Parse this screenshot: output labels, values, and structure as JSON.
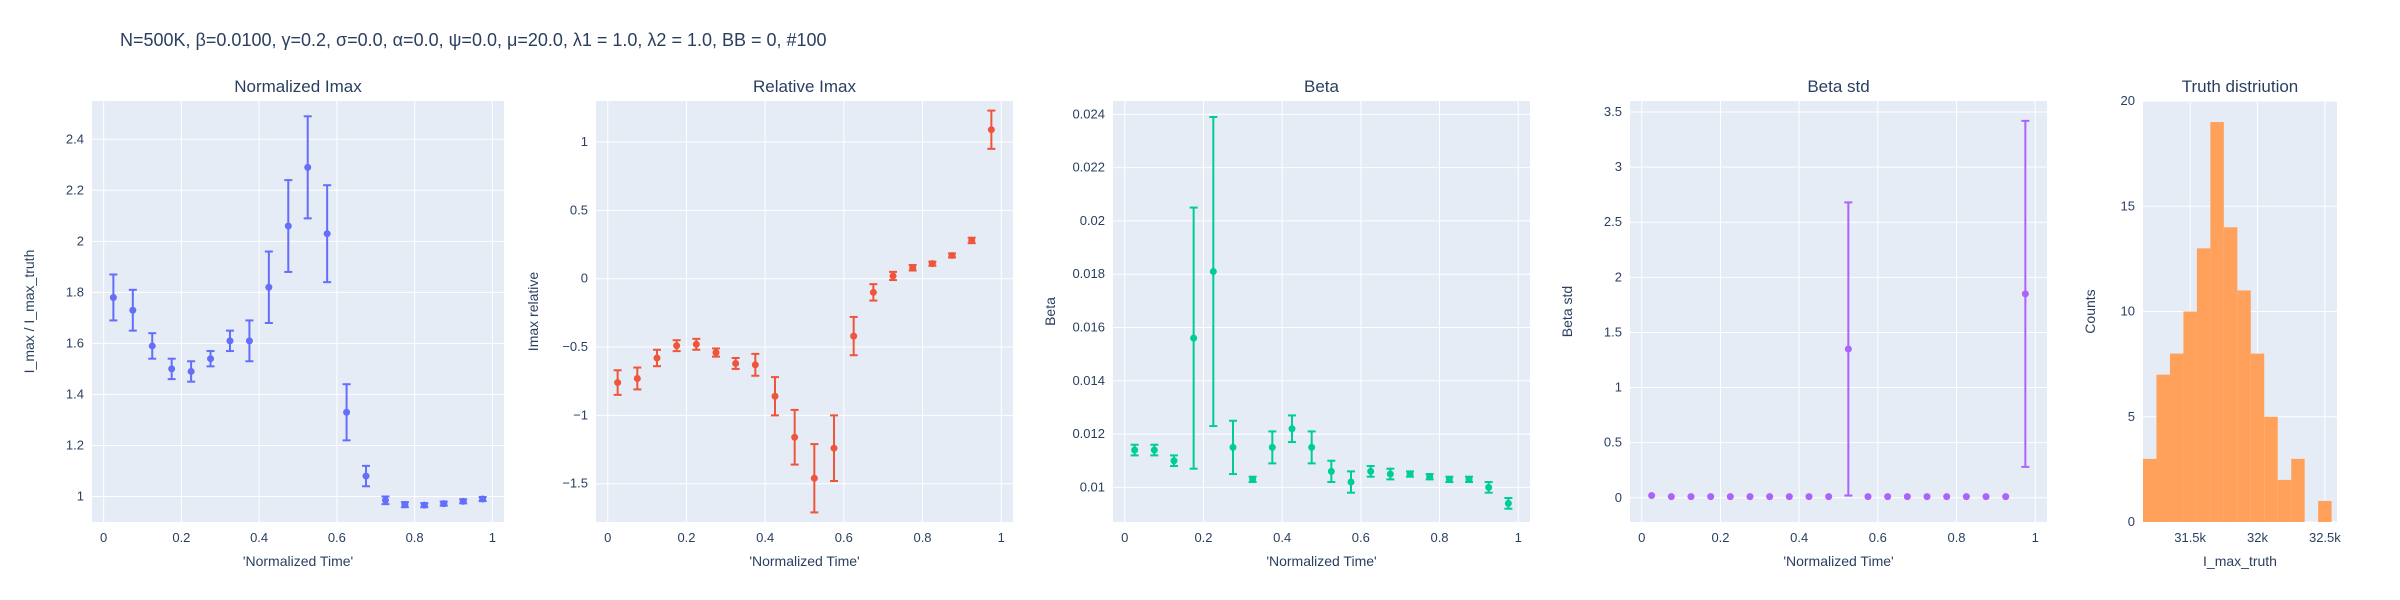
{
  "figure": {
    "suptitle": "N=500K, β=0.0100, γ=0.2, σ=0.0,  α=0.0, ψ=0.0, μ=20.0, λ1 = 1.0, λ2 = 1.0, BB = 0, #100",
    "colors": {
      "plot_bg": "#e5ecf6",
      "grid": "#ffffff",
      "text": "#2a3f5f"
    }
  },
  "chart_data": [
    {
      "type": "scatter",
      "title": "Normalized Imax",
      "xlabel": "'Normalized Time'",
      "ylabel": "I_max / I_max_truth",
      "xlim": [
        -0.03,
        1.03
      ],
      "ylim": [
        0.9,
        2.55
      ],
      "xticks": [
        0,
        0.2,
        0.4,
        0.6,
        0.8,
        1
      ],
      "xtick_labels": [
        "0",
        "0.2",
        "0.4",
        "0.6",
        "0.8",
        "1"
      ],
      "yticks": [
        1,
        1.2,
        1.4,
        1.6,
        1.8,
        2,
        2.2,
        2.4
      ],
      "ytick_labels": [
        "1",
        "1.2",
        "1.4",
        "1.6",
        "1.8",
        "2",
        "2.2",
        "2.4"
      ],
      "color": "#636efa",
      "x": [
        0.025,
        0.075,
        0.125,
        0.175,
        0.225,
        0.275,
        0.325,
        0.375,
        0.425,
        0.475,
        0.525,
        0.575,
        0.625,
        0.675,
        0.725,
        0.775,
        0.825,
        0.875,
        0.925,
        0.975
      ],
      "y": [
        1.78,
        1.73,
        1.59,
        1.5,
        1.49,
        1.54,
        1.61,
        1.61,
        1.82,
        2.06,
        2.29,
        2.03,
        1.33,
        1.08,
        0.985,
        0.968,
        0.966,
        0.972,
        0.981,
        0.99
      ],
      "error": [
        0.09,
        0.08,
        0.05,
        0.04,
        0.04,
        0.03,
        0.04,
        0.08,
        0.14,
        0.18,
        0.2,
        0.19,
        0.11,
        0.04,
        0.015,
        0.01,
        0.008,
        0.008,
        0.008,
        0.008
      ]
    },
    {
      "type": "scatter",
      "title": "Relative Imax",
      "xlabel": "'Normalized Time'",
      "ylabel": "Imax relative",
      "xlim": [
        -0.03,
        1.03
      ],
      "ylim": [
        -1.78,
        1.3
      ],
      "xticks": [
        0,
        0.2,
        0.4,
        0.6,
        0.8,
        1
      ],
      "xtick_labels": [
        "0",
        "0.2",
        "0.4",
        "0.6",
        "0.8",
        "1"
      ],
      "yticks": [
        -1.5,
        -1,
        -0.5,
        0,
        0.5,
        1
      ],
      "ytick_labels": [
        "−1.5",
        "−1",
        "−0.5",
        "0",
        "0.5",
        "1"
      ],
      "color": "#ef553b",
      "x": [
        0.025,
        0.075,
        0.125,
        0.175,
        0.225,
        0.275,
        0.325,
        0.375,
        0.425,
        0.475,
        0.525,
        0.575,
        0.625,
        0.675,
        0.725,
        0.775,
        0.825,
        0.875,
        0.925,
        0.975
      ],
      "y": [
        -0.76,
        -0.73,
        -0.58,
        -0.49,
        -0.48,
        -0.54,
        -0.62,
        -0.63,
        -0.86,
        -1.16,
        -1.46,
        -1.24,
        -0.42,
        -0.1,
        0.02,
        0.08,
        0.11,
        0.17,
        0.28,
        1.09
      ],
      "error": [
        0.09,
        0.08,
        0.06,
        0.04,
        0.04,
        0.03,
        0.04,
        0.08,
        0.14,
        0.2,
        0.25,
        0.24,
        0.14,
        0.06,
        0.03,
        0.02,
        0.015,
        0.015,
        0.02,
        0.14
      ]
    },
    {
      "type": "scatter",
      "title": "Beta",
      "xlabel": "'Normalized Time'",
      "ylabel": "Beta",
      "xlim": [
        -0.03,
        1.03
      ],
      "ylim": [
        0.0087,
        0.0245
      ],
      "xticks": [
        0,
        0.2,
        0.4,
        0.6,
        0.8,
        1
      ],
      "xtick_labels": [
        "0",
        "0.2",
        "0.4",
        "0.6",
        "0.8",
        "1"
      ],
      "yticks": [
        0.01,
        0.012,
        0.014,
        0.016,
        0.018,
        0.02,
        0.022,
        0.024
      ],
      "ytick_labels": [
        "0.01",
        "0.012",
        "0.014",
        "0.016",
        "0.018",
        "0.02",
        "0.022",
        "0.024"
      ],
      "color": "#00cc96",
      "x": [
        0.025,
        0.075,
        0.125,
        0.175,
        0.225,
        0.275,
        0.325,
        0.375,
        0.425,
        0.475,
        0.525,
        0.575,
        0.625,
        0.675,
        0.725,
        0.775,
        0.825,
        0.875,
        0.925,
        0.975
      ],
      "y": [
        0.0114,
        0.0114,
        0.011,
        0.0156,
        0.0181,
        0.0115,
        0.0103,
        0.0115,
        0.0122,
        0.0115,
        0.0106,
        0.0102,
        0.0106,
        0.0105,
        0.0105,
        0.0104,
        0.0103,
        0.0103,
        0.01,
        0.0094
      ],
      "error": [
        0.0002,
        0.0002,
        0.0002,
        0.0049,
        0.0058,
        0.001,
        0.0001,
        0.0006,
        0.0005,
        0.0006,
        0.0004,
        0.0004,
        0.0002,
        0.0002,
        0.0001,
        0.0001,
        0.0001,
        0.0001,
        0.0002,
        0.0002
      ]
    },
    {
      "type": "scatter",
      "title": "Beta std",
      "xlabel": "'Normalized Time'",
      "ylabel": "Beta std",
      "xlim": [
        -0.03,
        1.03
      ],
      "ylim": [
        -0.22,
        3.6
      ],
      "xticks": [
        0,
        0.2,
        0.4,
        0.6,
        0.8,
        1
      ],
      "xtick_labels": [
        "0",
        "0.2",
        "0.4",
        "0.6",
        "0.8",
        "1"
      ],
      "yticks": [
        0,
        0.5,
        1,
        1.5,
        2,
        2.5,
        3,
        3.5
      ],
      "ytick_labels": [
        "0",
        "0.5",
        "1",
        "1.5",
        "2",
        "2.5",
        "3",
        "3.5"
      ],
      "color": "#ab63fa",
      "x": [
        0.025,
        0.075,
        0.125,
        0.175,
        0.225,
        0.275,
        0.325,
        0.375,
        0.425,
        0.475,
        0.525,
        0.575,
        0.625,
        0.675,
        0.725,
        0.775,
        0.825,
        0.875,
        0.925,
        0.975
      ],
      "y": [
        0.02,
        0.01,
        0.01,
        0.01,
        0.01,
        0.01,
        0.01,
        0.01,
        0.01,
        0.01,
        1.35,
        0.01,
        0.01,
        0.01,
        0.01,
        0.01,
        0.01,
        0.01,
        0.01,
        1.85
      ],
      "error": [
        0,
        0,
        0,
        0,
        0,
        0,
        0,
        0,
        0,
        0,
        1.33,
        0,
        0,
        0,
        0,
        0,
        0,
        0,
        0,
        1.57
      ]
    },
    {
      "type": "bar",
      "title": "Truth distriution",
      "xlabel": "I_max_truth",
      "ylabel": "Counts",
      "xlim": [
        31150,
        32590
      ],
      "ylim": [
        0,
        20
      ],
      "xticks": [
        31500,
        32000,
        32500
      ],
      "xtick_labels": [
        "31.5k",
        "32k",
        "32.5k"
      ],
      "yticks": [
        0,
        5,
        10,
        15,
        20
      ],
      "ytick_labels": [
        "0",
        "5",
        "10",
        "15",
        "20"
      ],
      "color": "#ffa15a",
      "bin_edges": [
        31150,
        31250,
        31350,
        31450,
        31550,
        31650,
        31750,
        31850,
        31950,
        32050,
        32150,
        32250,
        32350,
        32450,
        32550
      ],
      "values": [
        3,
        7,
        8,
        10,
        13,
        19,
        14,
        11,
        8,
        5,
        2,
        3,
        0,
        1
      ]
    }
  ]
}
